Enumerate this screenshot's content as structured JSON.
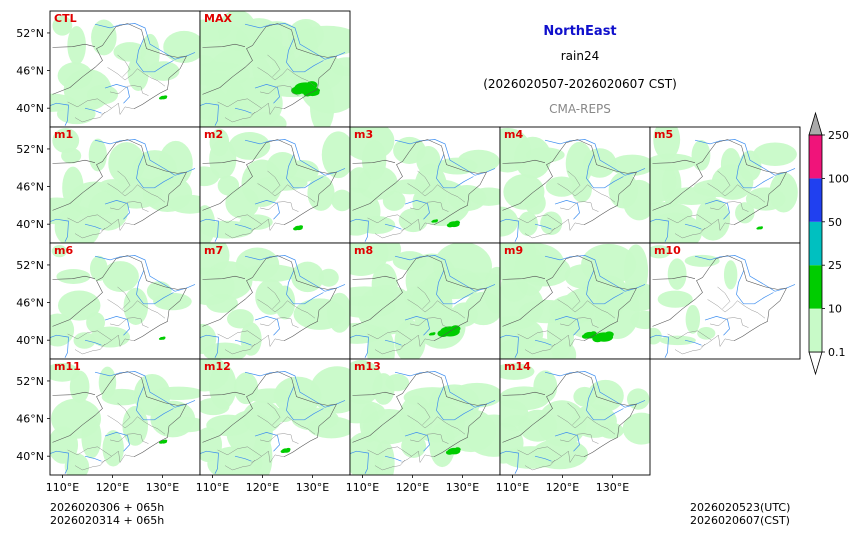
{
  "figure": {
    "title": "NorthEast",
    "variable": "rain24",
    "period": "(2026020507-2026020607 CST)",
    "model": "CMA-REPS",
    "init_lines": [
      "2026020306  +  065h",
      "2026020314  +  065h"
    ],
    "valid_lines": [
      "2026020523(UTC)",
      "2026020607(CST)"
    ]
  },
  "colors": {
    "title": "#1010cc",
    "panel_label": "#e00000",
    "model": "#888888",
    "river": "#3d8ef0",
    "border": "#555555",
    "land": "#ffffff",
    "frame": "#000000"
  },
  "axes": {
    "lat_labels": [
      "52°N",
      "46°N",
      "40°N"
    ],
    "lon_labels": [
      "110°E",
      "120°E",
      "130°E"
    ]
  },
  "colorbar": {
    "levels": [
      "0.1",
      "10",
      "25",
      "50",
      "100",
      "250"
    ],
    "colors": [
      "#c8fac8",
      "#00cc00",
      "#00c0c0",
      "#2040f0",
      "#f0147a"
    ],
    "extend_low": "#ffffff",
    "extend_high": "#aaaaaa"
  },
  "panels": [
    {
      "label": "CTL",
      "cover": 0.22,
      "heavy": [
        {
          "lon": 130.2,
          "lat": 41.7,
          "sz": 0.5
        }
      ]
    },
    {
      "label": "MAX",
      "cover": 0.5,
      "heavy": [
        {
          "lon": 128.6,
          "lat": 43.2,
          "sz": 1.6
        },
        {
          "lon": 130.0,
          "lat": 42.5,
          "sz": 1.0
        }
      ]
    },
    {
      "label": "m1",
      "cover": 0.26,
      "heavy": []
    },
    {
      "label": "m2",
      "cover": 0.3,
      "heavy": [
        {
          "lon": 127.2,
          "lat": 39.4,
          "sz": 0.6
        }
      ]
    },
    {
      "label": "m3",
      "cover": 0.33,
      "heavy": [
        {
          "lon": 124.5,
          "lat": 40.5,
          "sz": 0.4
        },
        {
          "lon": 128.3,
          "lat": 40.0,
          "sz": 0.8
        }
      ]
    },
    {
      "label": "m4",
      "cover": 0.25,
      "heavy": []
    },
    {
      "label": "m5",
      "cover": 0.32,
      "heavy": [
        {
          "lon": 129.5,
          "lat": 39.4,
          "sz": 0.4
        }
      ]
    },
    {
      "label": "m6",
      "cover": 0.18,
      "heavy": [
        {
          "lon": 130.0,
          "lat": 40.3,
          "sz": 0.4
        }
      ]
    },
    {
      "label": "m7",
      "cover": 0.28,
      "heavy": []
    },
    {
      "label": "m8",
      "cover": 0.42,
      "heavy": [
        {
          "lon": 124.0,
          "lat": 41.0,
          "sz": 0.4
        },
        {
          "lon": 127.5,
          "lat": 41.4,
          "sz": 1.4
        }
      ]
    },
    {
      "label": "m9",
      "cover": 0.45,
      "heavy": [
        {
          "lon": 125.5,
          "lat": 40.8,
          "sz": 0.9
        },
        {
          "lon": 128.3,
          "lat": 40.5,
          "sz": 1.3
        }
      ]
    },
    {
      "label": "m10",
      "cover": 0.08,
      "heavy": []
    },
    {
      "label": "m11",
      "cover": 0.24,
      "heavy": [
        {
          "lon": 130.2,
          "lat": 42.3,
          "sz": 0.5
        }
      ]
    },
    {
      "label": "m12",
      "cover": 0.3,
      "heavy": [
        {
          "lon": 124.7,
          "lat": 40.9,
          "sz": 0.6
        }
      ]
    },
    {
      "label": "m13",
      "cover": 0.33,
      "heavy": [
        {
          "lon": 128.3,
          "lat": 40.8,
          "sz": 0.9
        }
      ]
    },
    {
      "label": "m14",
      "cover": 0.3,
      "heavy": []
    }
  ]
}
